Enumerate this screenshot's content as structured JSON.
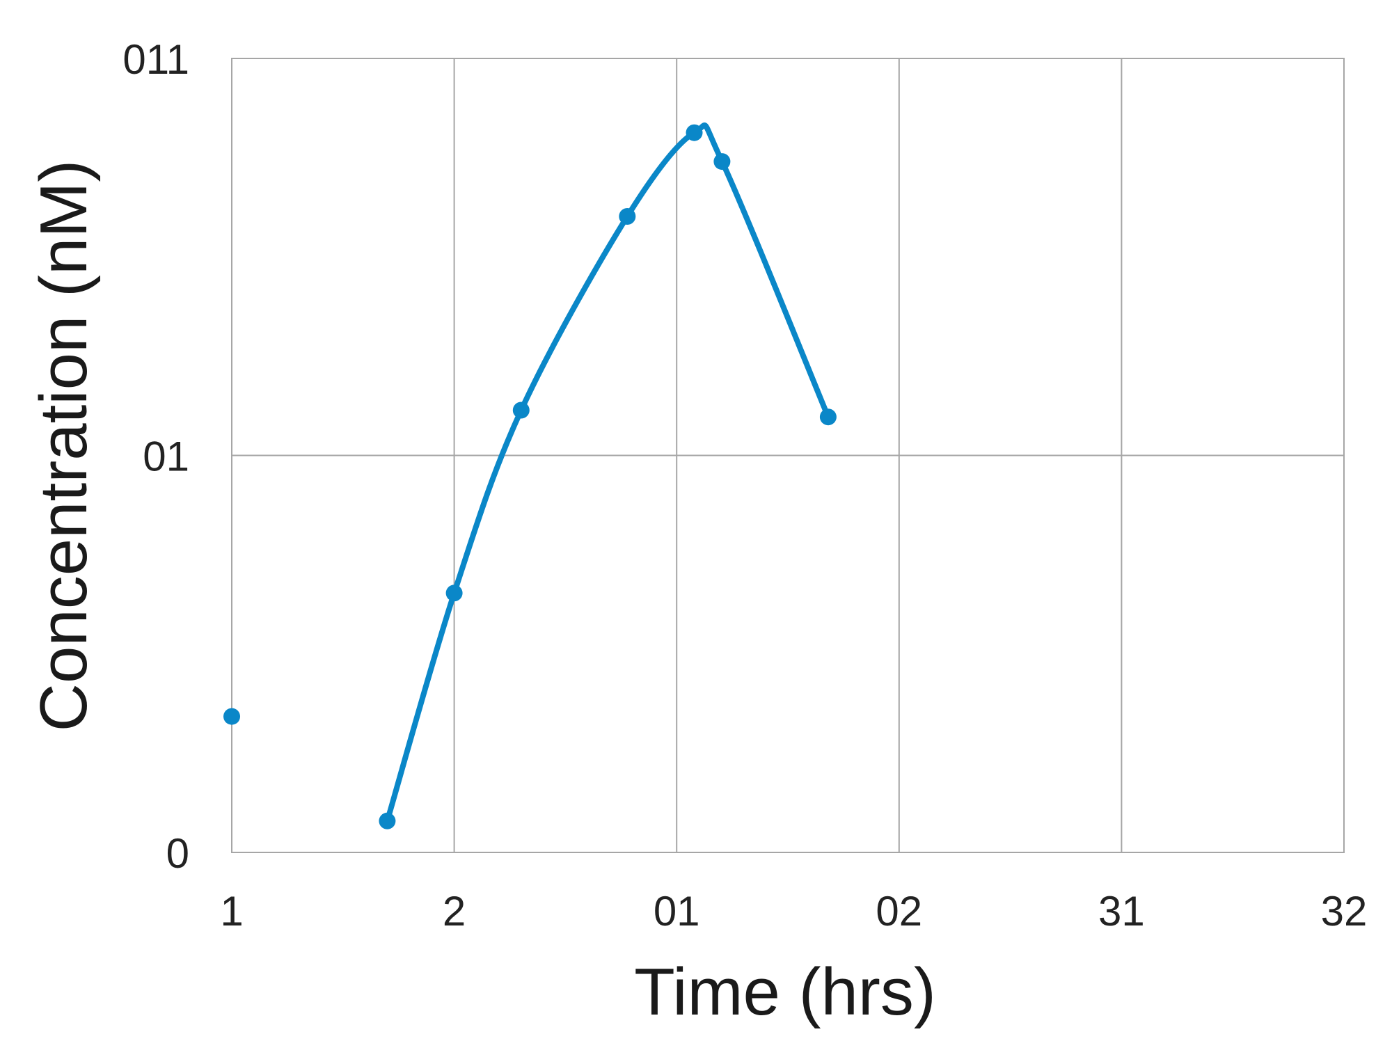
{
  "chart_data": {
    "type": "line",
    "xlabel": "Time (hrs)",
    "ylabel": "Concentration (nM)",
    "x_scale": "categorical-grid",
    "y_scale": "log",
    "x_tick_labels": [
      "1",
      "2",
      "01",
      "02",
      "31",
      "32"
    ],
    "y_tick_labels": [
      "0",
      "01",
      "011"
    ],
    "grid": true,
    "legend": "none",
    "series": [
      {
        "color": "#0a87c8",
        "smooth": true,
        "points": [
          {
            "x": 0.01,
            "y": 2.2
          },
          {
            "x": 0.05,
            "y": 1.2
          },
          {
            "x": 0.1,
            "y": 4.5
          },
          {
            "x": 0.2,
            "y": 13
          },
          {
            "x": 0.6,
            "y": 40
          },
          {
            "x": 1.2,
            "y": 65
          },
          {
            "x": 1.6,
            "y": 55
          },
          {
            "x": 4.8,
            "y": 12.5
          }
        ]
      }
    ]
  }
}
